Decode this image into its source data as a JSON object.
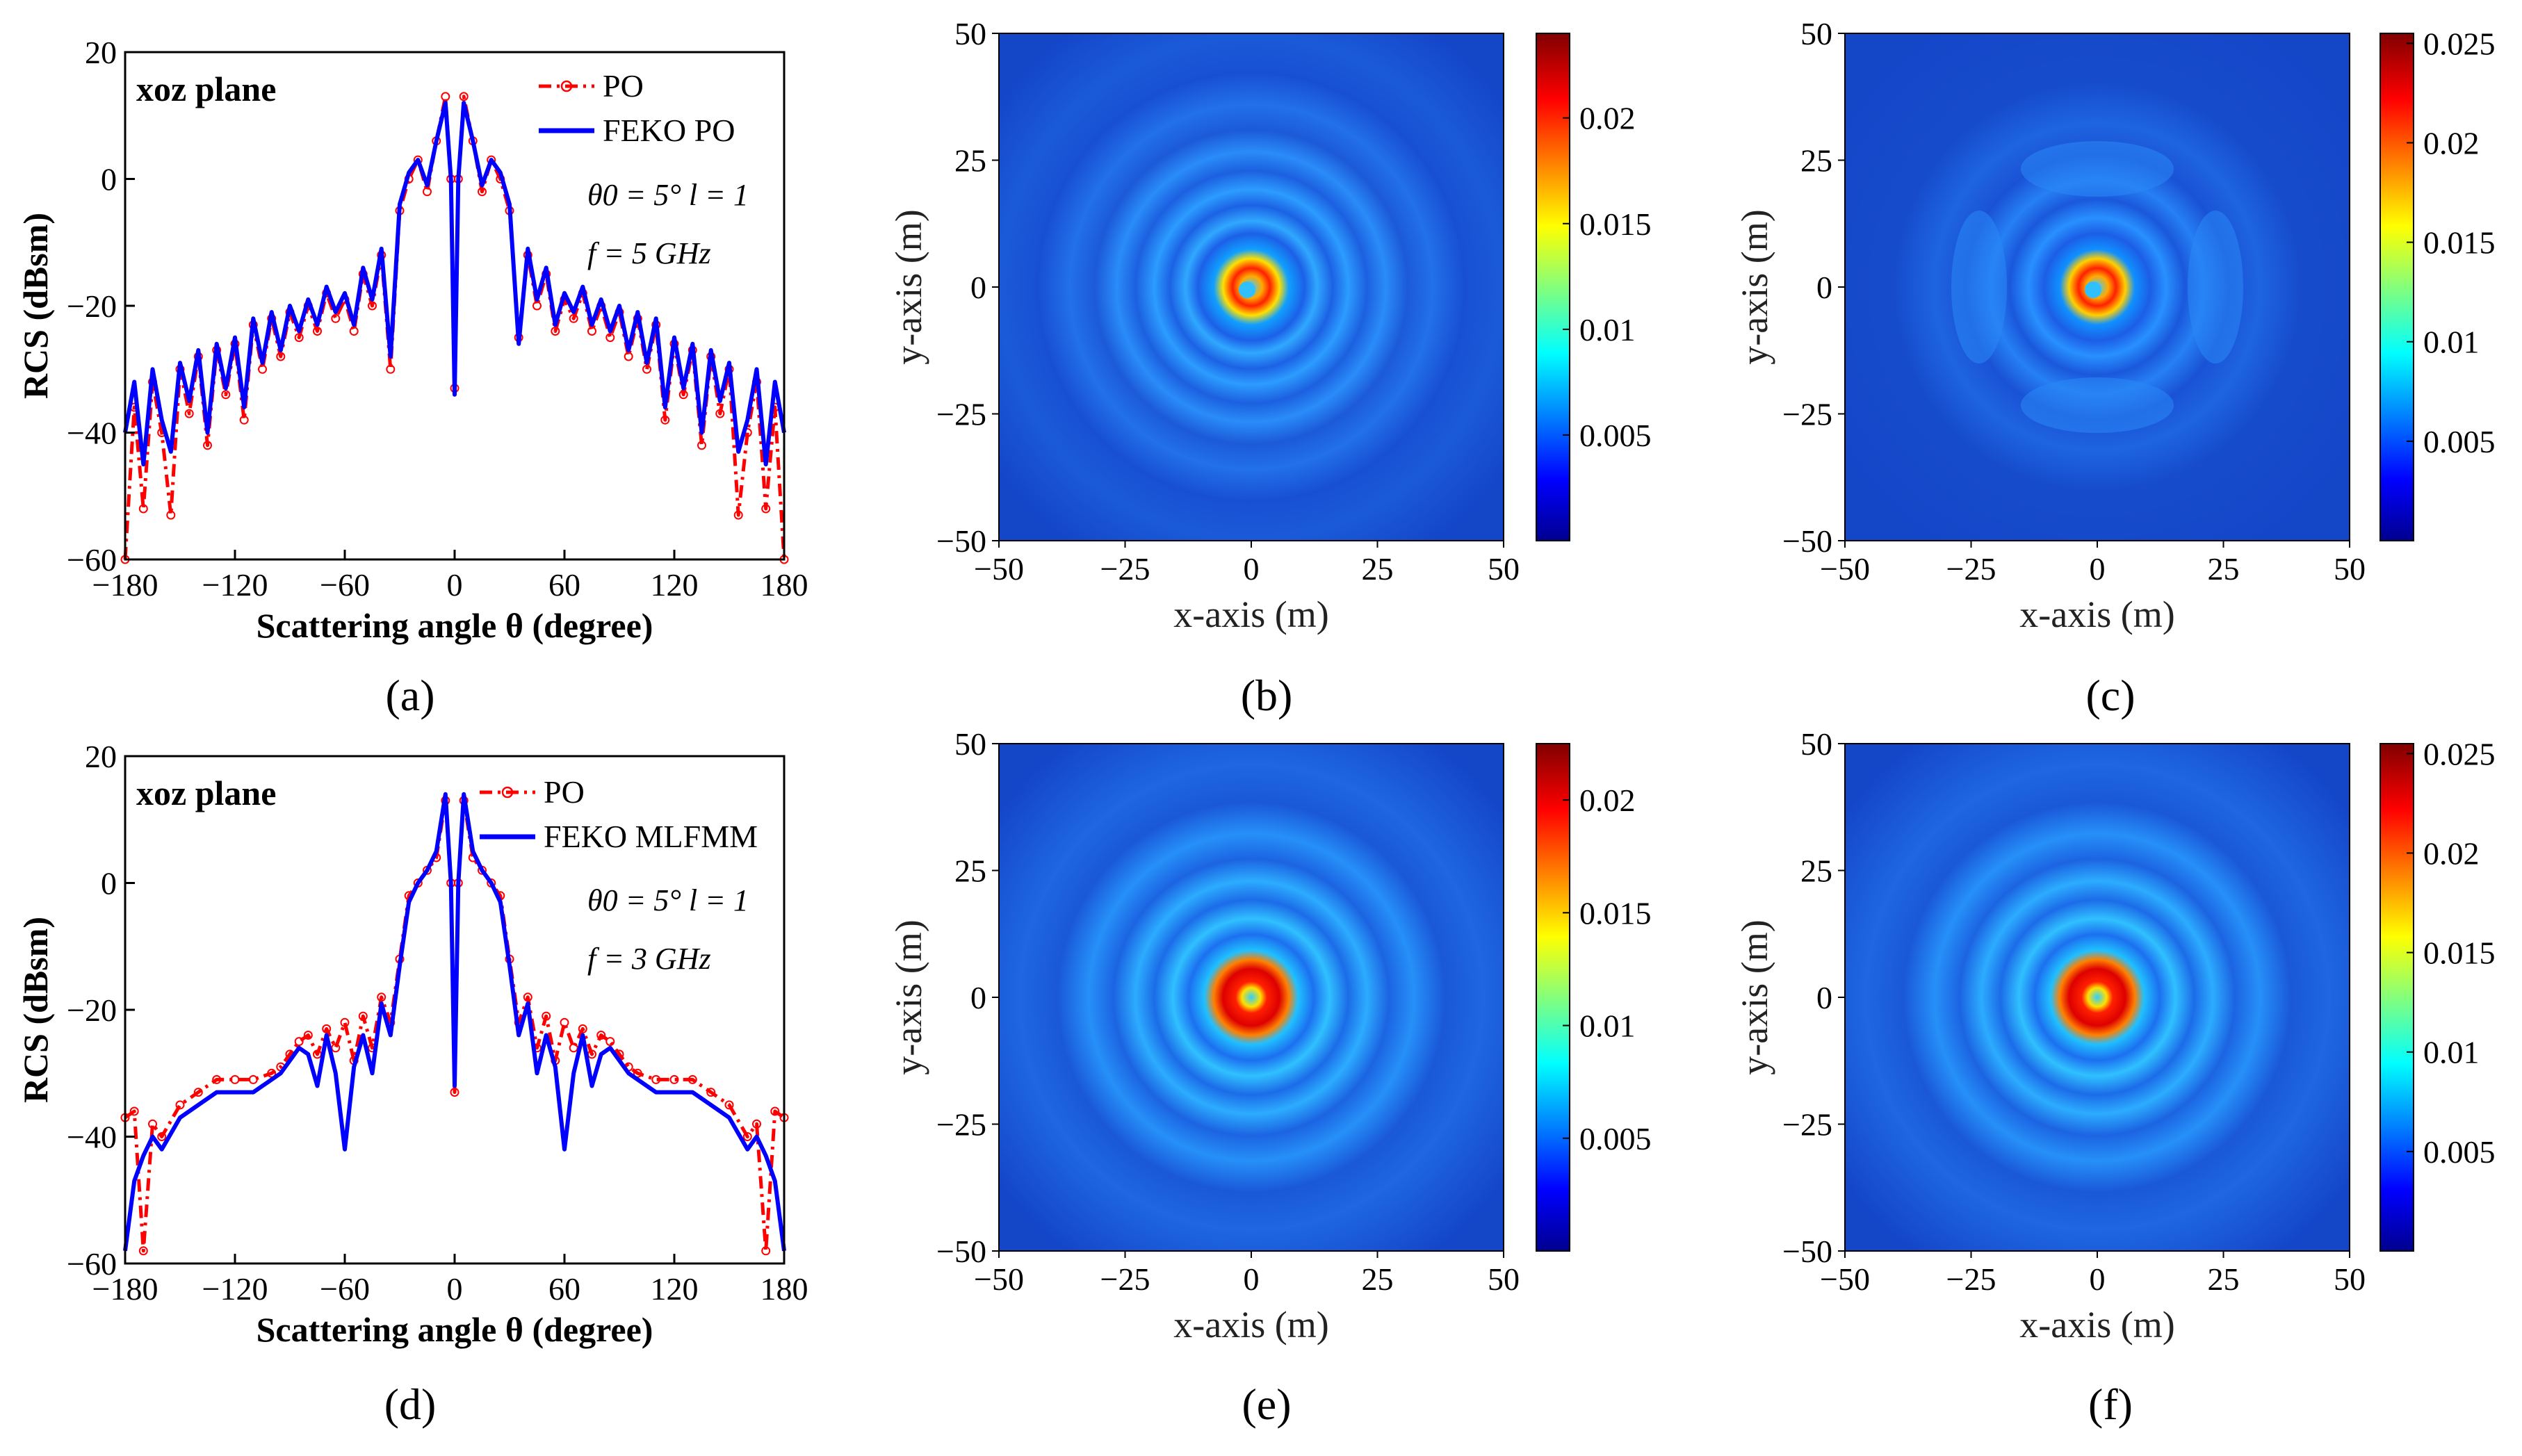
{
  "figure": {
    "captions": [
      "(a)",
      "(b)",
      "(c)",
      "(d)",
      "(e)",
      "(f)"
    ]
  },
  "colors": {
    "po": "#ff0000",
    "feko": "#0000ff",
    "field_background": "#1450d8"
  },
  "chart_data": [
    {
      "id": "a",
      "type": "line",
      "title": "",
      "plane_label": "xoz plane",
      "xlabel": "Scattering angle θ (degree)",
      "ylabel": "RCS (dBsm)",
      "xlim": [
        -180,
        180
      ],
      "ylim": [
        -60,
        20
      ],
      "xticks": [
        -180,
        -120,
        -60,
        0,
        60,
        120,
        180
      ],
      "yticks": [
        -60,
        -40,
        -20,
        0,
        20
      ],
      "annotations": [
        "θ0 = 5° l = 1",
        "f = 5 GHz"
      ],
      "legend_position": "top-right",
      "series": [
        {
          "name": "PO",
          "style": "dash-dot with circle markers",
          "x": [
            -180,
            -175,
            -170,
            -165,
            -160,
            -155,
            -150,
            -145,
            -140,
            -135,
            -130,
            -125,
            -120,
            -115,
            -110,
            -105,
            -100,
            -95,
            -90,
            -85,
            -80,
            -75,
            -70,
            -65,
            -60,
            -55,
            -50,
            -45,
            -40,
            -35,
            -30,
            -25,
            -20,
            -15,
            -10,
            -5,
            -2,
            0,
            2,
            5,
            10,
            15,
            20,
            25,
            30,
            35,
            40,
            45,
            50,
            55,
            60,
            65,
            70,
            75,
            80,
            85,
            90,
            95,
            100,
            105,
            110,
            115,
            120,
            125,
            130,
            135,
            140,
            145,
            150,
            155,
            160,
            165,
            170,
            175,
            180
          ],
          "y": [
            -60,
            -36,
            -52,
            -32,
            -40,
            -53,
            -30,
            -37,
            -28,
            -42,
            -27,
            -34,
            -26,
            -38,
            -23,
            -30,
            -22,
            -28,
            -21,
            -25,
            -20,
            -24,
            -18,
            -22,
            -19,
            -24,
            -15,
            -20,
            -12,
            -30,
            -5,
            0,
            3,
            -2,
            6,
            13,
            0,
            -33,
            0,
            13,
            6,
            -2,
            3,
            0,
            -5,
            -25,
            -12,
            -20,
            -15,
            -24,
            -19,
            -22,
            -18,
            -24,
            -20,
            -25,
            -21,
            -28,
            -22,
            -30,
            -23,
            -38,
            -26,
            -34,
            -27,
            -42,
            -28,
            -37,
            -30,
            -53,
            -40,
            -32,
            -52,
            -36,
            -60
          ]
        },
        {
          "name": "FEKO PO",
          "style": "solid",
          "x": [
            -180,
            -175,
            -170,
            -165,
            -160,
            -155,
            -150,
            -145,
            -140,
            -135,
            -130,
            -125,
            -120,
            -115,
            -110,
            -105,
            -100,
            -95,
            -90,
            -85,
            -80,
            -75,
            -70,
            -65,
            -60,
            -55,
            -50,
            -45,
            -40,
            -35,
            -30,
            -25,
            -20,
            -15,
            -10,
            -5,
            -2,
            0,
            2,
            5,
            10,
            15,
            20,
            25,
            30,
            35,
            40,
            45,
            50,
            55,
            60,
            65,
            70,
            75,
            80,
            85,
            90,
            95,
            100,
            105,
            110,
            115,
            120,
            125,
            130,
            135,
            140,
            145,
            150,
            155,
            160,
            165,
            170,
            175,
            180
          ],
          "y": [
            -40,
            -32,
            -45,
            -30,
            -38,
            -43,
            -29,
            -35,
            -27,
            -40,
            -26,
            -33,
            -25,
            -36,
            -22,
            -29,
            -21,
            -27,
            -20,
            -24,
            -19,
            -23,
            -17,
            -21,
            -18,
            -23,
            -14,
            -19,
            -11,
            -28,
            -4,
            1,
            3,
            -1,
            6,
            12,
            0,
            -34,
            0,
            12,
            6,
            -1,
            3,
            1,
            -4,
            -26,
            -11,
            -19,
            -14,
            -23,
            -18,
            -21,
            -17,
            -23,
            -19,
            -24,
            -20,
            -27,
            -21,
            -29,
            -22,
            -36,
            -25,
            -33,
            -26,
            -40,
            -27,
            -35,
            -29,
            -43,
            -38,
            -30,
            -45,
            -32,
            -40
          ]
        }
      ]
    },
    {
      "id": "b",
      "type": "heatmap",
      "xlabel": "x-axis (m)",
      "ylabel": "y-axis (m)",
      "xlim": [
        -50,
        50
      ],
      "ylim": [
        -50,
        50
      ],
      "xticks": [
        -50,
        -25,
        0,
        25,
        50
      ],
      "yticks": [
        -50,
        -25,
        0,
        25,
        50
      ],
      "colorbar_ticks": [
        "0.005",
        "0.01",
        "0.015",
        "0.02"
      ],
      "colorbar_range": [
        0,
        0.024
      ],
      "pattern": "vortex ring with off-center null, outer ripple rings"
    },
    {
      "id": "c",
      "type": "heatmap",
      "xlabel": "x-axis (m)",
      "ylabel": "y-axis (m)",
      "xlim": [
        -50,
        50
      ],
      "ylim": [
        -50,
        50
      ],
      "xticks": [
        -50,
        -25,
        0,
        25,
        50
      ],
      "yticks": [
        -50,
        -25,
        0,
        25,
        50
      ],
      "colorbar_ticks": [
        "0.005",
        "0.01",
        "0.015",
        "0.02",
        "0.025"
      ],
      "colorbar_range": [
        0,
        0.0255
      ],
      "pattern": "vortex ring with four-lobed outer ripples"
    },
    {
      "id": "d",
      "type": "line",
      "title": "",
      "plane_label": "xoz plane",
      "xlabel": "Scattering angle θ (degree)",
      "ylabel": "RCS (dBsm)",
      "xlim": [
        -180,
        180
      ],
      "ylim": [
        -60,
        20
      ],
      "xticks": [
        -180,
        -120,
        -60,
        0,
        60,
        120,
        180
      ],
      "yticks": [
        -60,
        -40,
        -20,
        0,
        20
      ],
      "annotations": [
        "θ0 = 5° l = 1",
        "f = 3 GHz"
      ],
      "legend_position": "top-right",
      "series": [
        {
          "name": "PO",
          "style": "dash-dot with circle markers",
          "x": [
            -180,
            -175,
            -170,
            -165,
            -160,
            -150,
            -140,
            -130,
            -120,
            -110,
            -100,
            -95,
            -90,
            -85,
            -80,
            -75,
            -70,
            -65,
            -60,
            -55,
            -50,
            -45,
            -40,
            -35,
            -30,
            -25,
            -20,
            -15,
            -10,
            -5,
            -2,
            0,
            2,
            5,
            10,
            15,
            20,
            25,
            30,
            35,
            40,
            45,
            50,
            55,
            60,
            65,
            70,
            75,
            80,
            85,
            90,
            95,
            100,
            110,
            120,
            130,
            140,
            150,
            160,
            165,
            170,
            175,
            180
          ],
          "y": [
            -37,
            -36,
            -58,
            -38,
            -40,
            -35,
            -33,
            -31,
            -31,
            -31,
            -30,
            -29,
            -27,
            -25,
            -24,
            -27,
            -23,
            -26,
            -22,
            -28,
            -21,
            -26,
            -18,
            -22,
            -12,
            -2,
            0,
            2,
            4,
            13,
            0,
            -33,
            0,
            13,
            4,
            2,
            0,
            -2,
            -12,
            -22,
            -18,
            -26,
            -21,
            -28,
            -22,
            -26,
            -23,
            -27,
            -24,
            -25,
            -27,
            -29,
            -30,
            -31,
            -31,
            -31,
            -33,
            -35,
            -40,
            -38,
            -58,
            -36,
            -37
          ]
        },
        {
          "name": "FEKO MLFMM",
          "style": "solid",
          "x": [
            -180,
            -175,
            -170,
            -165,
            -160,
            -150,
            -140,
            -130,
            -120,
            -110,
            -100,
            -95,
            -90,
            -85,
            -80,
            -75,
            -70,
            -65,
            -60,
            -55,
            -50,
            -45,
            -40,
            -35,
            -30,
            -25,
            -20,
            -15,
            -10,
            -5,
            -2,
            0,
            2,
            5,
            10,
            15,
            20,
            25,
            30,
            35,
            40,
            45,
            50,
            55,
            60,
            65,
            70,
            75,
            80,
            85,
            90,
            95,
            100,
            110,
            120,
            130,
            140,
            150,
            160,
            165,
            170,
            175,
            180
          ],
          "y": [
            -58,
            -47,
            -43,
            -40,
            -42,
            -37,
            -35,
            -33,
            -33,
            -33,
            -31,
            -30,
            -28,
            -26,
            -27,
            -32,
            -24,
            -30,
            -42,
            -29,
            -24,
            -30,
            -19,
            -24,
            -13,
            -3,
            0,
            2,
            5,
            14,
            0,
            -32,
            0,
            14,
            5,
            2,
            0,
            -3,
            -13,
            -24,
            -19,
            -30,
            -24,
            -29,
            -42,
            -30,
            -24,
            -32,
            -27,
            -26,
            -28,
            -30,
            -31,
            -33,
            -33,
            -33,
            -35,
            -37,
            -42,
            -40,
            -43,
            -47,
            -58
          ]
        }
      ]
    },
    {
      "id": "e",
      "type": "heatmap",
      "xlabel": "x-axis (m)",
      "ylabel": "y-axis (m)",
      "xlim": [
        -50,
        50
      ],
      "ylim": [
        -50,
        50
      ],
      "xticks": [
        -50,
        -25,
        0,
        25,
        50
      ],
      "yticks": [
        -50,
        -25,
        0,
        25,
        50
      ],
      "colorbar_ticks": [
        "0.005",
        "0.01",
        "0.015",
        "0.02"
      ],
      "colorbar_range": [
        0,
        0.0225
      ],
      "pattern": "concentric vortex rings, centered null"
    },
    {
      "id": "f",
      "type": "heatmap",
      "xlabel": "x-axis (m)",
      "ylabel": "y-axis (m)",
      "xlim": [
        -50,
        50
      ],
      "ylim": [
        -50,
        50
      ],
      "xticks": [
        -50,
        -25,
        0,
        25,
        50
      ],
      "yticks": [
        -50,
        -25,
        0,
        25,
        50
      ],
      "colorbar_ticks": [
        "0.005",
        "0.01",
        "0.015",
        "0.02",
        "0.025"
      ],
      "colorbar_range": [
        0,
        0.0255
      ],
      "pattern": "concentric vortex rings, centered null"
    }
  ]
}
